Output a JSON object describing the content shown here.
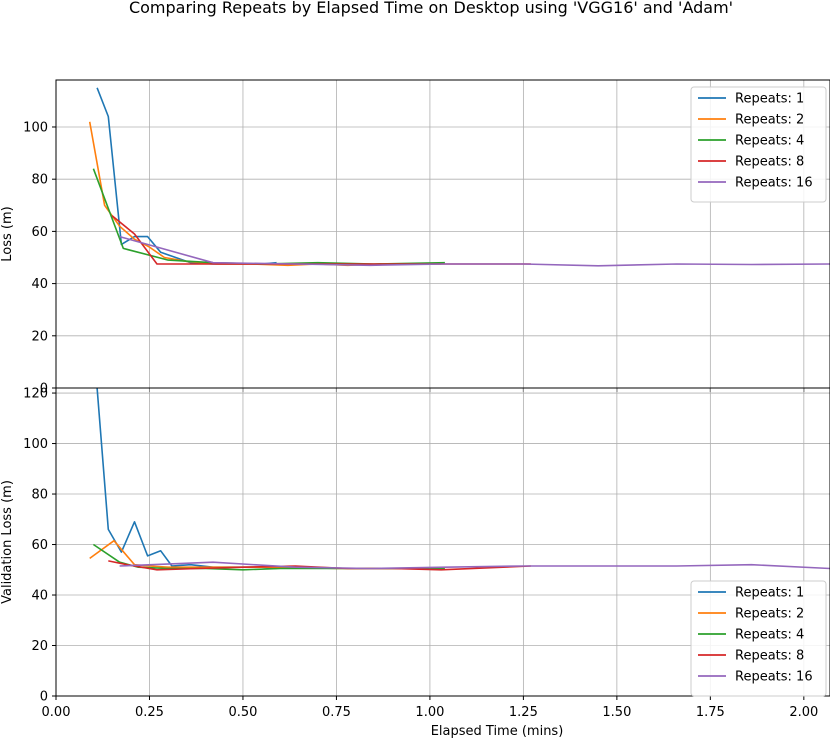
{
  "figure": {
    "title": "Comparing Repeats by Elapsed Time on Desktop using 'VGG16' and 'Adam'"
  },
  "chart_data": [
    {
      "type": "line",
      "panel": "top",
      "xlabel": "",
      "ylabel": "Loss (m)",
      "xlim": [
        0,
        2.07
      ],
      "ylim": [
        0,
        118
      ],
      "xticks": [
        "0.00",
        "0.25",
        "0.50",
        "0.75",
        "1.00",
        "1.25",
        "1.50",
        "1.75",
        "2.00"
      ],
      "yticks": [
        "0",
        "20",
        "40",
        "60",
        "80",
        "100"
      ],
      "grid": true,
      "legend_position": "top-right",
      "series": [
        {
          "name": "Repeats: 1",
          "color": "#1f77b4",
          "x": [
            0.11,
            0.14,
            0.175,
            0.21,
            0.245,
            0.28,
            0.32,
            0.36,
            0.42,
            0.48,
            0.55,
            0.59
          ],
          "y": [
            115,
            104,
            55,
            58,
            58,
            52,
            50,
            48,
            47.5,
            47.5,
            47.5,
            48
          ]
        },
        {
          "name": "Repeats: 2",
          "color": "#ff7f0e",
          "x": [
            0.09,
            0.13,
            0.17,
            0.21,
            0.25,
            0.29,
            0.35,
            0.43,
            0.52,
            0.62,
            0.7,
            0.78,
            0.87,
            0.95,
            1.03
          ],
          "y": [
            102,
            70,
            62,
            57,
            54,
            50,
            48.5,
            47.5,
            47.5,
            47,
            47.5,
            47,
            47.5,
            47.5,
            47.5
          ]
        },
        {
          "name": "Repeats: 4",
          "color": "#2ca02c",
          "x": [
            0.1,
            0.18,
            0.3,
            0.42,
            0.55,
            0.7,
            0.85,
            1.04
          ],
          "y": [
            84,
            53.5,
            49,
            48,
            47.5,
            48,
            47.5,
            48
          ]
        },
        {
          "name": "Repeats: 8",
          "color": "#d62728",
          "x": [
            0.15,
            0.21,
            0.27,
            0.4,
            0.55,
            0.72,
            0.88,
            1.05,
            1.27
          ],
          "y": [
            66,
            59,
            47.5,
            47.5,
            47.5,
            47.5,
            47.5,
            47.5,
            47.5
          ]
        },
        {
          "name": "Repeats: 16",
          "color": "#9467bd",
          "x": [
            0.17,
            0.42,
            0.64,
            0.84,
            1.04,
            1.25,
            1.45,
            1.66,
            1.86,
            2.07
          ],
          "y": [
            58,
            48,
            47.5,
            47,
            47.5,
            47.5,
            46.8,
            47.5,
            47.3,
            47.5
          ]
        }
      ]
    },
    {
      "type": "line",
      "panel": "bottom",
      "xlabel": "Elapsed Time (mins)",
      "ylabel": "Validation Loss (m)",
      "xlim": [
        0,
        2.07
      ],
      "ylim": [
        0,
        122
      ],
      "xticks": [
        "0.00",
        "0.25",
        "0.50",
        "0.75",
        "1.00",
        "1.25",
        "1.50",
        "1.75",
        "2.00"
      ],
      "yticks": [
        "0",
        "20",
        "40",
        "60",
        "80",
        "100",
        "120"
      ],
      "grid": true,
      "legend_position": "bottom-right",
      "series": [
        {
          "name": "Repeats: 1",
          "color": "#1f77b4",
          "x": [
            0.11,
            0.14,
            0.175,
            0.21,
            0.245,
            0.28,
            0.31,
            0.36,
            0.42,
            0.48,
            0.55,
            0.59
          ],
          "y": [
            122,
            66,
            57,
            69,
            55.5,
            57.5,
            51.5,
            52,
            51,
            51,
            51,
            50.5
          ]
        },
        {
          "name": "Repeats: 2",
          "color": "#ff7f0e",
          "x": [
            0.09,
            0.155,
            0.21,
            0.25,
            0.3,
            0.38,
            0.5,
            0.62,
            0.75,
            0.88,
            1.03
          ],
          "y": [
            54.5,
            61.5,
            52,
            51.5,
            51,
            51,
            51,
            51,
            50.5,
            50.5,
            50.5
          ]
        },
        {
          "name": "Repeats: 4",
          "color": "#2ca02c",
          "x": [
            0.1,
            0.17,
            0.22,
            0.3,
            0.4,
            0.5,
            0.6,
            0.75,
            0.9,
            1.04
          ],
          "y": [
            60,
            53,
            51,
            50.5,
            50.5,
            50,
            50.5,
            50.5,
            50.5,
            50.5
          ]
        },
        {
          "name": "Repeats: 8",
          "color": "#d62728",
          "x": [
            0.14,
            0.19,
            0.27,
            0.38,
            0.5,
            0.64,
            0.78,
            0.9,
            1.03,
            1.27
          ],
          "y": [
            53.5,
            52,
            50,
            50.5,
            51,
            51.5,
            50.5,
            50.5,
            50,
            51.5
          ]
        },
        {
          "name": "Repeats: 16",
          "color": "#9467bd",
          "x": [
            0.17,
            0.42,
            0.64,
            0.84,
            1.04,
            1.25,
            1.45,
            1.66,
            1.86,
            2.07
          ],
          "y": [
            51.5,
            53,
            51,
            50.5,
            51,
            51.5,
            51.5,
            51.5,
            52,
            50.5
          ]
        }
      ]
    }
  ]
}
